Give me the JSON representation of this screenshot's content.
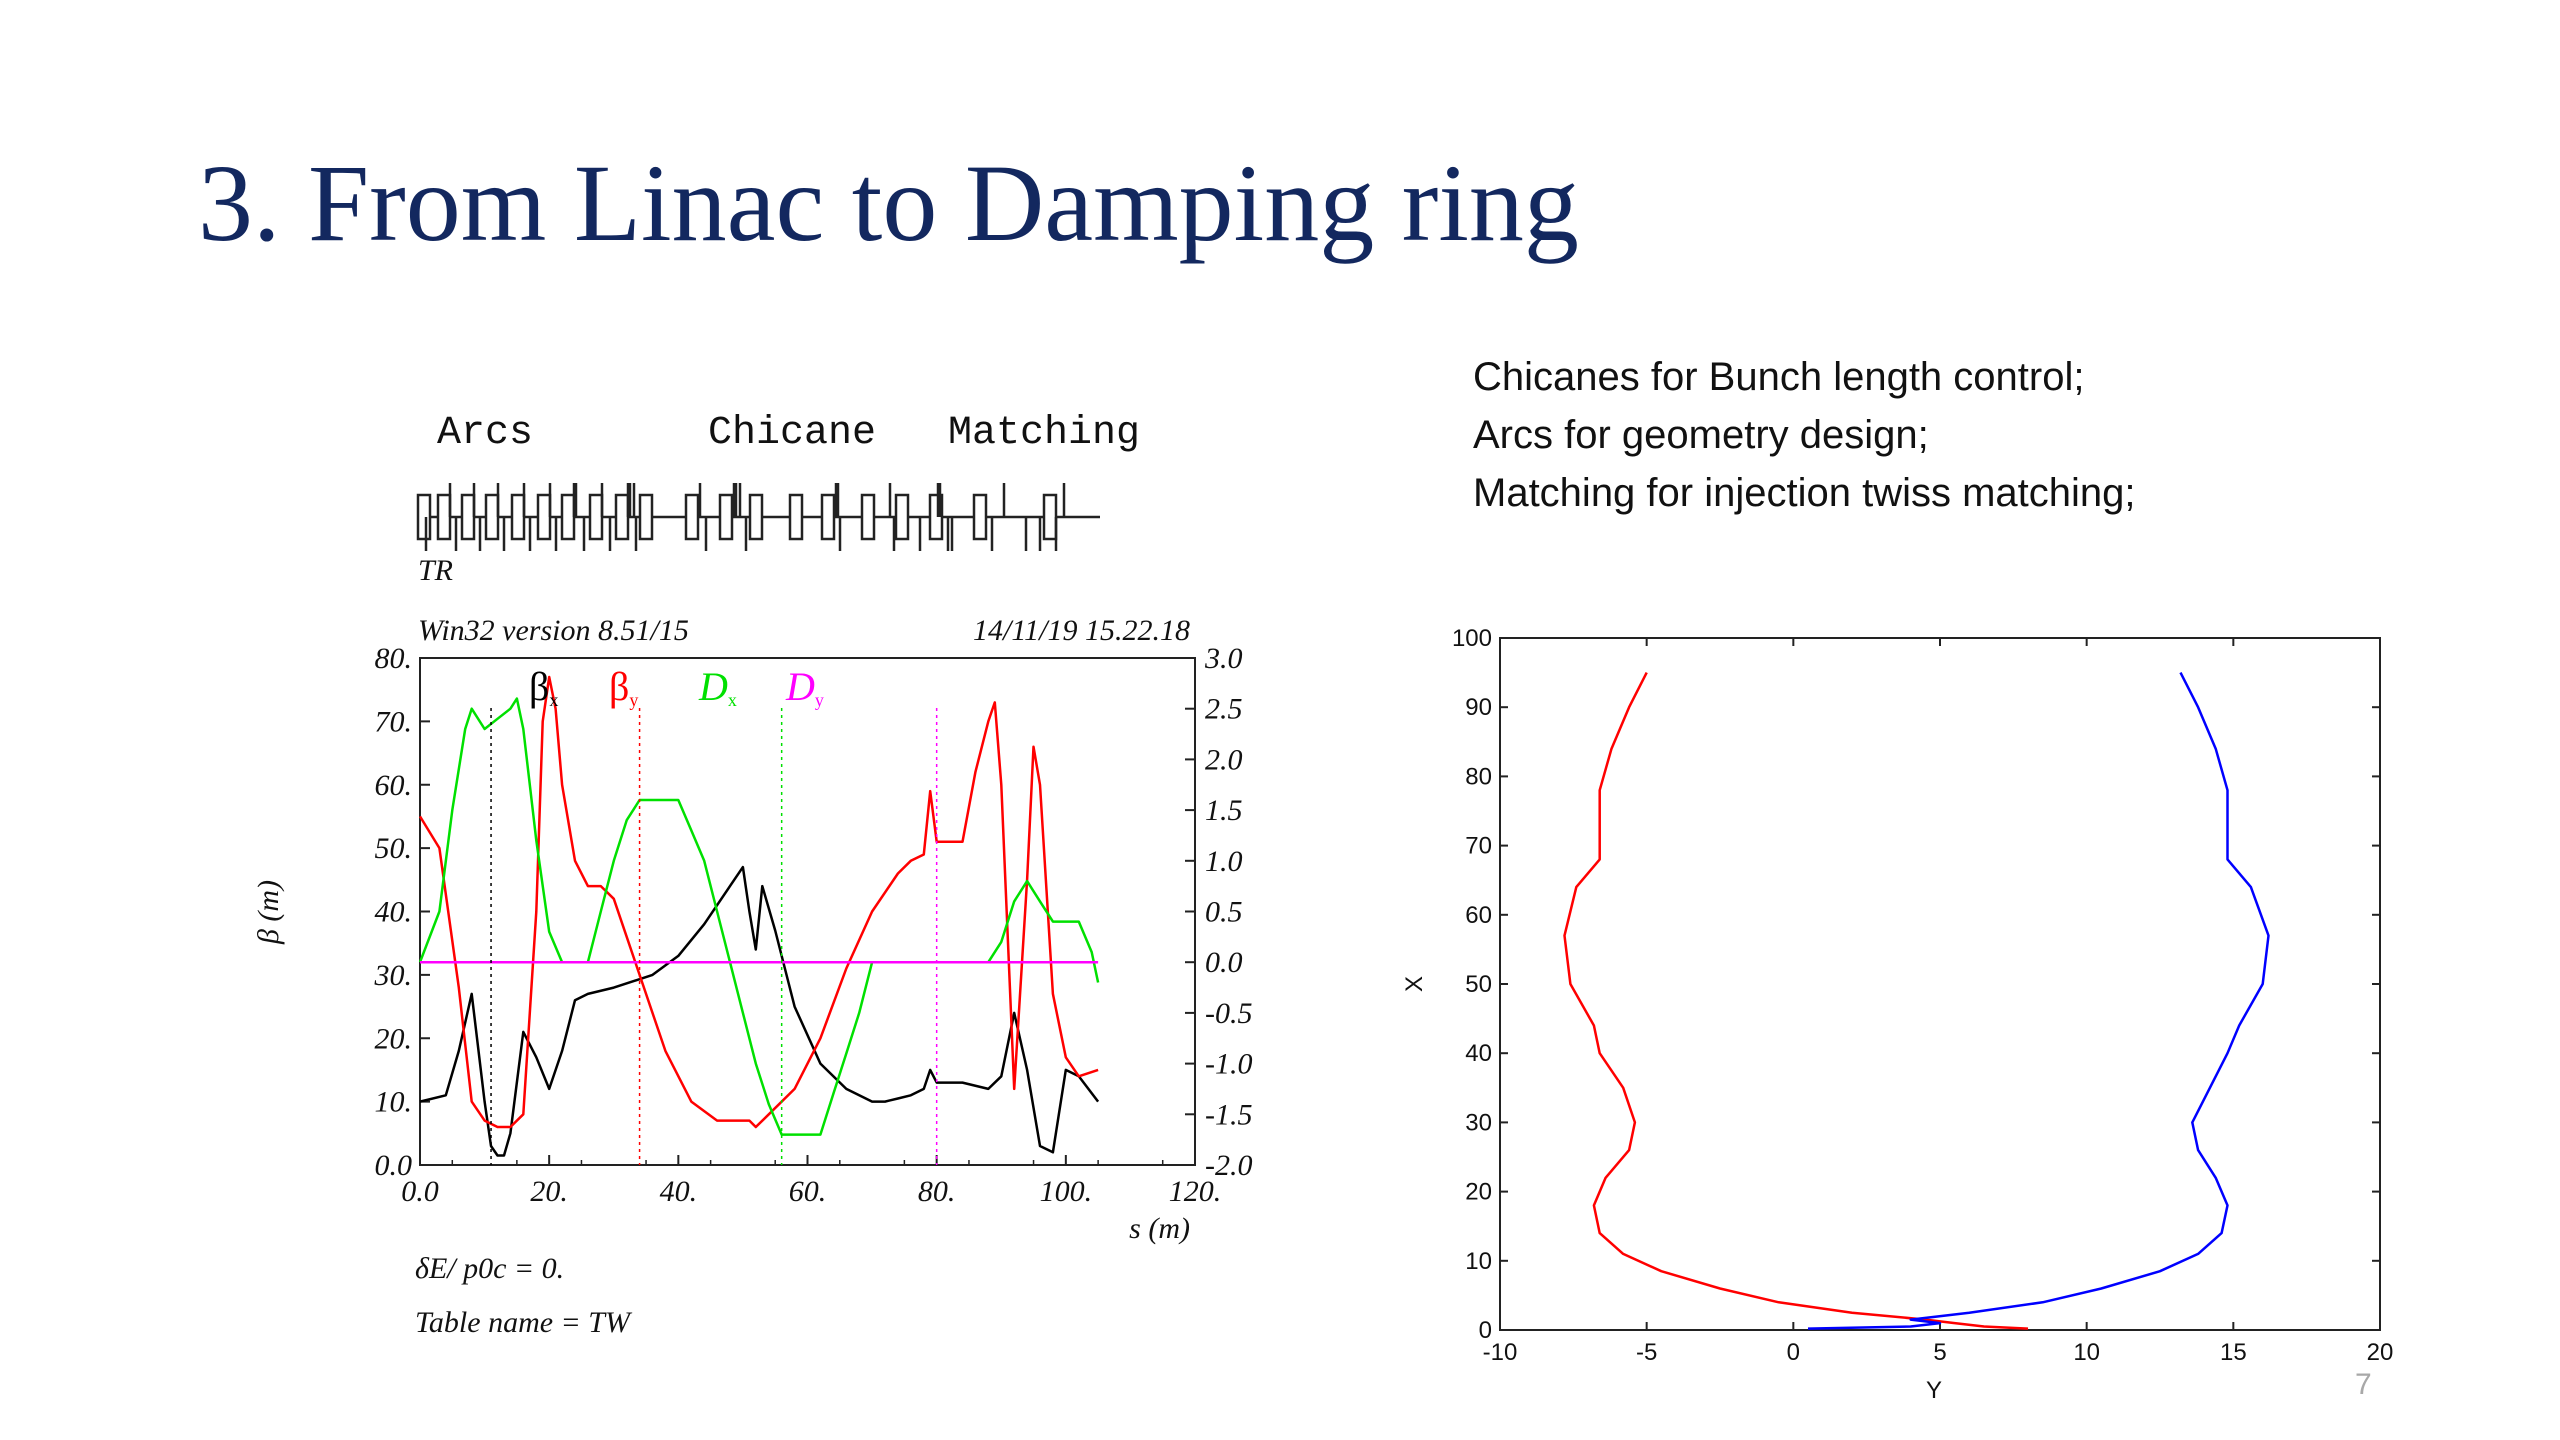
{
  "slide": {
    "title": "3. From Linac to Damping ring",
    "bullets": [
      "Chicanes for Bunch length control;",
      "Arcs for geometry design;",
      "Matching for injection twiss matching;"
    ],
    "page_number": "7"
  },
  "lattice": {
    "section_labels": [
      "Arcs",
      "Chicane",
      "Matching"
    ],
    "start_label": "TR"
  },
  "twiss_plot": {
    "header_left": "Win32 version 8.51/15",
    "header_right": "14/11/19  15.22.18",
    "footer_lines": [
      "δE/ p0c  =  0.",
      "Table name = TW"
    ]
  },
  "chart_data": [
    {
      "type": "line",
      "x_label": "s (m)",
      "y_label": "β  (m)",
      "x_ticks": [
        "0.0",
        "20.",
        "40.",
        "60.",
        "80.",
        "100.",
        "120."
      ],
      "y_ticks": [
        "0.0",
        "10.",
        "20.",
        "30.",
        "40.",
        "50.",
        "60.",
        "70.",
        "80."
      ],
      "y2_ticks": [
        "-2.0",
        "-1.5",
        "-1.0",
        "-0.5",
        "0.0",
        "0.5",
        "1.0",
        "1.5",
        "2.0",
        "2.5",
        "3.0"
      ],
      "xlim": [
        0,
        120
      ],
      "ylim": [
        0,
        80
      ],
      "y2lim": [
        -2.0,
        3.0
      ],
      "grid": false,
      "series": [
        {
          "name": "βx",
          "axis": "left",
          "color": "#000000",
          "x": [
            0,
            4,
            6,
            8,
            10,
            11,
            12,
            13,
            14,
            16,
            18,
            20,
            22,
            24,
            26,
            30,
            36,
            40,
            44,
            48,
            50,
            51,
            52,
            53,
            55,
            58,
            62,
            66,
            70,
            72,
            74,
            76,
            78,
            79,
            80,
            84,
            88,
            90,
            92,
            94,
            96,
            98,
            100,
            102,
            105
          ],
          "y": [
            10,
            11,
            18,
            27,
            10,
            3,
            1.5,
            1.5,
            5,
            21,
            17,
            12,
            18,
            26,
            27,
            28,
            30,
            33,
            38,
            44,
            47,
            40,
            34,
            44,
            37,
            25,
            16,
            12,
            10,
            10,
            10.5,
            11,
            12,
            15,
            13,
            13,
            12,
            14,
            24,
            15,
            3,
            2,
            15,
            14,
            10
          ]
        },
        {
          "name": "βy",
          "axis": "left",
          "color": "#ff0000",
          "x": [
            0,
            3,
            6,
            8,
            10,
            12,
            14,
            16,
            18,
            19,
            20,
            21,
            22,
            24,
            26,
            28,
            30,
            34,
            38,
            42,
            46,
            50,
            51,
            52,
            54,
            58,
            62,
            66,
            70,
            74,
            76,
            78,
            79,
            80,
            82,
            84,
            86,
            88,
            89,
            90,
            92,
            94,
            95,
            96,
            98,
            100,
            102,
            105
          ],
          "y": [
            55,
            50,
            28,
            10,
            7,
            6,
            6,
            8,
            40,
            70,
            77,
            72,
            60,
            48,
            44,
            44,
            42,
            30,
            18,
            10,
            7,
            7,
            7,
            6,
            8,
            12,
            20,
            31,
            40,
            46,
            48,
            49,
            59,
            51,
            51,
            51,
            62,
            70,
            73,
            60,
            12,
            45,
            66,
            60,
            27,
            17,
            14,
            15
          ]
        },
        {
          "name": "Dx",
          "axis": "right",
          "color": "#00e000",
          "x": [
            0,
            3,
            5,
            7,
            8,
            10,
            12,
            14,
            15,
            16,
            18,
            20,
            22,
            24,
            26,
            28,
            30,
            32,
            34,
            36,
            38,
            40,
            42,
            44,
            46,
            48,
            50,
            52,
            54,
            56,
            58,
            60,
            62,
            64,
            66,
            68,
            70,
            72,
            74,
            76,
            78,
            80,
            84,
            86,
            88,
            90,
            92,
            94,
            96,
            98,
            100,
            102,
            104,
            105
          ],
          "y": [
            0,
            0.5,
            1.5,
            2.3,
            2.5,
            2.3,
            2.4,
            2.5,
            2.6,
            2.3,
            1.2,
            0.3,
            0,
            0,
            0,
            0.5,
            1,
            1.4,
            1.6,
            1.6,
            1.6,
            1.6,
            1.3,
            1,
            0.5,
            0,
            -0.5,
            -1,
            -1.4,
            -1.7,
            -1.7,
            -1.7,
            -1.7,
            -1.3,
            -0.9,
            -0.5,
            0,
            0,
            0,
            0,
            0,
            0,
            0,
            0,
            0,
            0.2,
            0.6,
            0.8,
            0.6,
            0.4,
            0.4,
            0.4,
            0.1,
            -0.2
          ]
        },
        {
          "name": "Dy",
          "axis": "right",
          "color": "#ff00ff",
          "x": [
            0,
            105
          ],
          "y": [
            0,
            0
          ]
        }
      ]
    },
    {
      "type": "line",
      "x_label": "Y",
      "y_label": "X",
      "x_ticks": [
        "-10",
        "-5",
        "0",
        "5",
        "10",
        "15",
        "20"
      ],
      "y_ticks": [
        "0",
        "10",
        "20",
        "30",
        "40",
        "50",
        "60",
        "70",
        "80",
        "90",
        "100"
      ],
      "xlim": [
        -10,
        20
      ],
      "ylim": [
        0,
        100
      ],
      "grid": false,
      "series": [
        {
          "color": "#ff0000",
          "x": [
            -5,
            -5.6,
            -6.2,
            -6.6,
            -6.6,
            -7.4,
            -7.8,
            -7.6,
            -6.8,
            -6.6,
            -5.8,
            -5.4,
            -5.6,
            -6.4,
            -6.8,
            -6.6,
            -5.8,
            -4.5,
            -2.5,
            -0.5,
            2,
            4.5,
            5.5,
            6.5,
            8
          ],
          "y": [
            95,
            90,
            84,
            78,
            68,
            64,
            57,
            50,
            44,
            40,
            35,
            30,
            26,
            22,
            18,
            14,
            11,
            8.5,
            6,
            4,
            2.5,
            1.5,
            1,
            0.5,
            0.2
          ]
        },
        {
          "color": "#0000ff",
          "x": [
            13.2,
            13.8,
            14.4,
            14.8,
            14.8,
            15.6,
            16.2,
            16,
            15.2,
            14.8,
            14.2,
            13.6,
            13.8,
            14.4,
            14.8,
            14.6,
            13.8,
            12.5,
            10.5,
            8.5,
            6,
            4,
            5,
            4,
            0.5
          ],
          "y": [
            95,
            90,
            84,
            78,
            68,
            64,
            57,
            50,
            44,
            40,
            35,
            30,
            26,
            22,
            18,
            14,
            11,
            8.5,
            6,
            4,
            2.5,
            1.5,
            1,
            0.5,
            0.2
          ]
        }
      ]
    }
  ]
}
